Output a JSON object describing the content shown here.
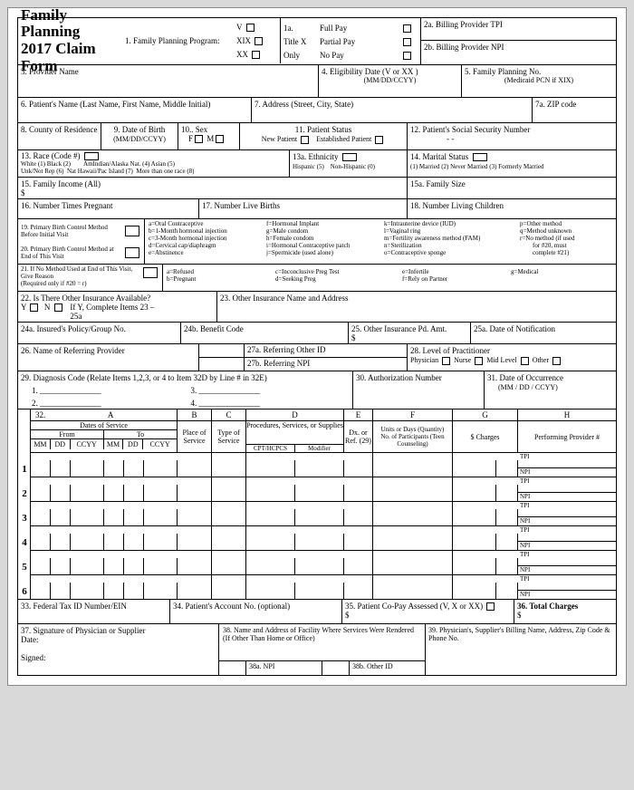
{
  "title_l1": "Family Planning",
  "title_l2": "2017 Claim Form",
  "fpp": "1. Family Planning Program:",
  "v": "V",
  "xix": "XIX",
  "xx": "XX",
  "s1a": "1a.",
  "titlex": "Title X",
  "only": "Only",
  "fullpay": "Full Pay",
  "partialpay": "Partial Pay",
  "nopay": "No Pay",
  "s2a": "2a. Billing Provider TPI",
  "s2b": "2b. Billing Provider NPI",
  "s3": "3. Provider Name",
  "s4": "4. Eligibility Date  (V or XX )",
  "s4sub": "(MM/DD/CCYY)",
  "s5": "5.    Family Planning No.",
  "s5sub": "(Medicaid PCN if XIX)",
  "s6": "6. Patient's Name (Last Name, First Name, Middle Initial)",
  "s7": "7. Address (Street, City, State)",
  "s7a": "7a. ZIP code",
  "s8": "8. County of Residence",
  "s9": "9.    Date of Birth",
  "s9sub": "(MM/DD/CCYY)",
  "s10": "10.. Sex",
  "s10f": "F",
  "s10m": "M",
  "s11": "11. Patient Status",
  "s11new": "New Patient",
  "s11est": "Established Patient",
  "s12": "12. Patient's Social Security Number",
  "s12dash": "-            -",
  "s13": "13. Race (Code #)",
  "r1": "White (1)  Black (2)",
  "r2": "AmIndian/Alaska Nat. (4)   Asian  (5)",
  "r3": "Unk/Not Rep (6)",
  "r4": "Nat Hawaii/Pac Island  (7)",
  "r5": "More than one race  (8)",
  "s13a": "13a.  Ethnicity",
  "eth1": "Hispanic (5)",
  "eth2": "Non-Hispanic (0)",
  "s14": "14. Marital Status",
  "m1": "(1) Married (2) Never Married (3) Formerly Married",
  "s15": "15. Family Income (All)",
  "dollar": "$",
  "s15a": "15a. Family Size",
  "s16": "16. Number Times Pregnant",
  "s17": "17. Number Live Births",
  "s18": "18. Number Living Children",
  "s19": "19. Primary Birth Control Method Before Initial Visit",
  "s20": "20. Primary Birth Control Method at End of This Visit",
  "bc_a": "a=Oral Contraceptive",
  "bc_b": "b=1-Month hormonal injection",
  "bc_c": "c=3-Month hormonal injection",
  "bc_d": "d=Cervical cap/diaphragm",
  "bc_e": "e=Abstinence",
  "bc_f": "f=Hormonal Implant",
  "bc_g": "g=Male condom",
  "bc_h": "h=Female condom",
  "bc_i": "i=Hormonal Contraceptive patch",
  "bc_j": "j=Spermicide (used alone)",
  "bc_k": "k=Intrauterine device (IUD)",
  "bc_l": "l=Vaginal ring",
  "bc_m": "m=Fertility awareness method (FAM)",
  "bc_n": "n=Sterilization",
  "bc_o": "o=Contraceptive sponge",
  "bc_p": "p=Other method",
  "bc_q": "q=Method unknown",
  "bc_r": "r=No method (if used",
  "bc_r2": "for #20, must",
  "bc_r3": "complete #21)",
  "s21": "21. If No Method Used at End of This Visit, Give Reason",
  "s21req": "(Required only if  #20 = r)",
  "ra": "a=Refused",
  "rb": "b=Pregnant",
  "rc": "c=Inconclusive Preg Test",
  "rd": "d=Seeking Preg",
  "re": "e=Infertile",
  "rf": "f=Rely on Partner",
  "rg": "g=Medical",
  "s22": "22. Is There Other Insurance Available?",
  "s22y": "Y",
  "s22n": "N",
  "s22ify": "If Y, Complete Items 23 – 25a",
  "s23": "23. Other Insurance Name and Address",
  "s24a": "24a. Insured's Policy/Group No.",
  "s24b": "24b. Benefit Code",
  "s25": "25. Other Insurance Pd. Amt.",
  "s25a": "25a. Date of Notification",
  "s26": "26. Name of Referring Provider",
  "s27a": "27a. Referring Other ID",
  "s27b": "27b. Referring NPI",
  "s28": "28. Level of Practitioner",
  "s28p": "Physician",
  "s28n": "Nurse",
  "s28m": "Mid Level",
  "s28o": "Other",
  "s29": "29. Diagnosis Code (Relate Items 1,2,3, or 4 to Item 32D by Line # in 32E)",
  "d1": "1. _______________",
  "d2": "2. _______________",
  "d3": "3. _______________",
  "d4": "4. _______________",
  "s30": "30. Authorization Number",
  "s31": "31.  Date of Occurrence",
  "s31sub": "(MM  /  DD  /  CCYY)",
  "s32": "32.",
  "colA": "A",
  "colB": "B",
  "colC": "C",
  "colD": "D",
  "colE": "E",
  "colF": "F",
  "colG": "G",
  "colH": "H",
  "hdrDates": "Dates of Service",
  "hdrFrom": "From",
  "hdrTo": "To",
  "mm": "MM",
  "dd": "DD",
  "ccyy": "CCYY",
  "hdrPlace": "Place of Service",
  "hdrType": "Type of Service",
  "hdrProc": "Procedures, Services, or Supplies",
  "hdrCPT": "CPT/HCPCS",
  "hdrMod": "Modifier",
  "hdrDx": "Dx. or Ref. (29)",
  "hdrUnits": "Units or Days (Quantity) No. of Participants (Teen Counseling)",
  "hdrCharges": "$ Charges",
  "hdrPerf": "Performing Provider #",
  "tpi": "TPI",
  "npi": "NPI",
  "s33": "33. Federal Tax ID Number/EIN",
  "s34": "34. Patient's Account No. (optional)",
  "s35": "35. Patient Co-Pay Assessed (V, X or XX)",
  "s36": "36. Total Charges",
  "s37": "37. Signature of Physician or Supplier",
  "s37date": "Date:",
  "s37sign": "Signed:",
  "s38": "38. Name and Address of Facility Where Services Were Rendered (If Other Than Home or Office)",
  "s38a": "38a. NPI",
  "s38b": "38b. Other ID",
  "s39": "39. Physician's, Supplier's Billing Name, Address, Zip Code & Phone No.",
  "r1n": "1",
  "r2n": "2",
  "r3n": "3",
  "r4n": "4",
  "r5n": "5",
  "r6n": "6"
}
